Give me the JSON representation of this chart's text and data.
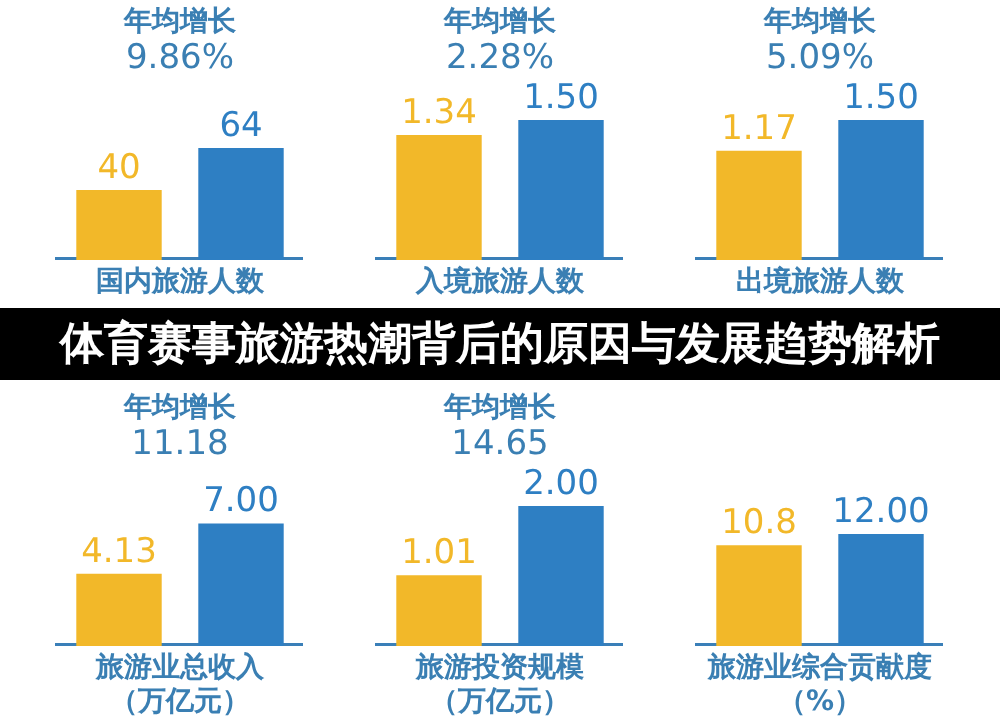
{
  "chart_data": [
    {
      "type": "bar",
      "categories": [
        null,
        null
      ],
      "values": [
        40,
        64
      ],
      "colors": [
        "#f2b829",
        "#2e7fc3"
      ],
      "data_labels": true,
      "xlabel": "国内旅游人数",
      "annotations": [
        "年均增长",
        "9.86%"
      ]
    },
    {
      "type": "bar",
      "categories": [
        null,
        null
      ],
      "values": [
        1.34,
        1.5
      ],
      "value_labels": [
        "1.34",
        "1.50"
      ],
      "colors": [
        "#f2b829",
        "#2e7fc3"
      ],
      "xlabel": "入境旅游人数",
      "annotations": [
        "年均增长",
        "2.28%"
      ]
    },
    {
      "type": "bar",
      "categories": [
        null,
        null
      ],
      "values": [
        1.17,
        1.5
      ],
      "value_labels": [
        "1.17",
        "1.50"
      ],
      "colors": [
        "#f2b829",
        "#2e7fc3"
      ],
      "xlabel": "出境旅游人数",
      "annotations": [
        "年均增长",
        "5.09%"
      ]
    },
    {
      "type": "other",
      "title": "体育赛事旅游热潮背后的原因与发展趋势解析"
    },
    {
      "type": "bar",
      "categories": [
        null,
        null
      ],
      "values": [
        4.13,
        7
      ],
      "value_labels": [
        "4.13",
        "7.00"
      ],
      "colors": [
        "#f2b829",
        "#2e7fc3"
      ],
      "xlabel": "旅游业总收入（万亿元）",
      "annotations": [
        "年均增长",
        "11.18"
      ]
    },
    {
      "type": "bar",
      "categories": [
        null,
        null
      ],
      "values": [
        1.01,
        2
      ],
      "value_labels": [
        "1.01",
        "2.00"
      ],
      "colors": [
        "#f2b829",
        "#2e7fc3"
      ],
      "xlabel": "旅游投资规模（万亿元）",
      "annotations": [
        "年均增长",
        "14.65"
      ]
    },
    {
      "type": "bar",
      "categories": [
        null,
        null
      ],
      "values": [
        10.8,
        12
      ],
      "value_labels": [
        "10.8",
        "12.00"
      ],
      "colors": [
        "#f2b829",
        "#2e7fc3"
      ],
      "xlabel": "旅游业综合贡献度（%）"
    }
  ]
}
